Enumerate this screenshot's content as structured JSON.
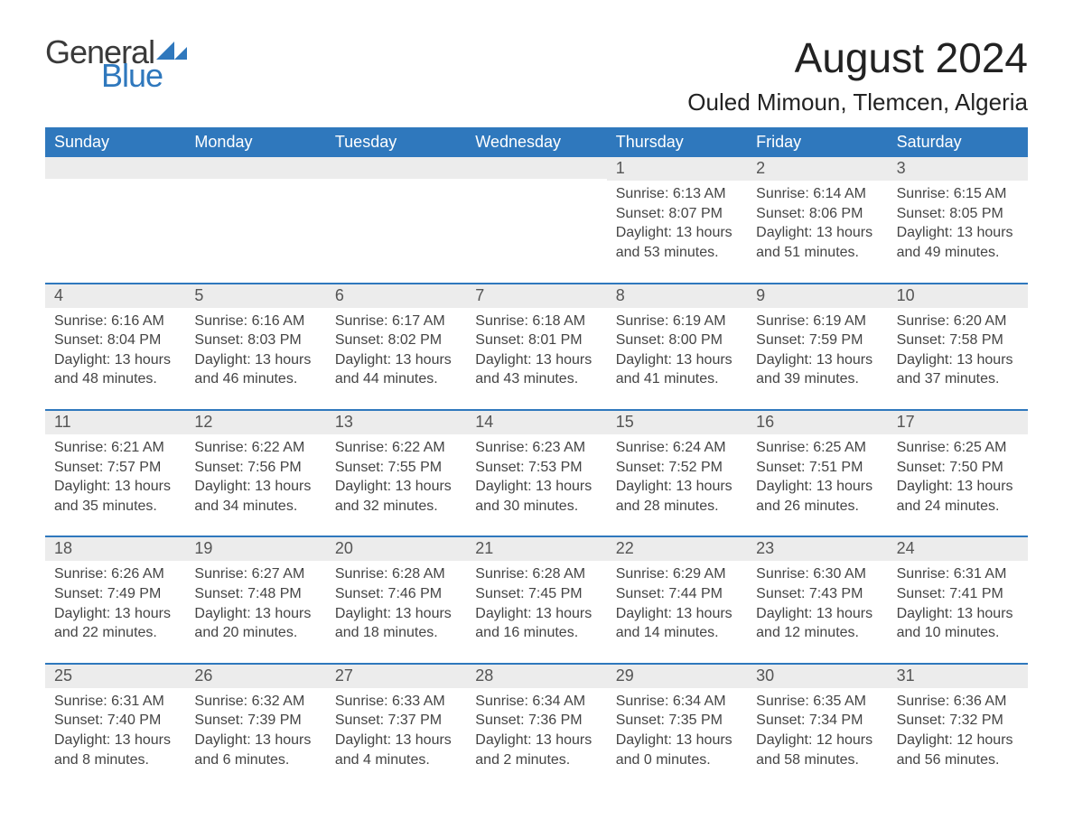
{
  "brand": {
    "word1": "General",
    "word2": "Blue",
    "tri_color": "#2f78bd"
  },
  "header": {
    "month_title": "August 2024",
    "location": "Ouled Mimoun, Tlemcen, Algeria"
  },
  "colors": {
    "header_bg": "#2f78bd",
    "header_text": "#ffffff",
    "daynum_bg": "#ececec",
    "body_text": "#444444",
    "rule": "#2f78bd"
  },
  "weekdays": [
    "Sunday",
    "Monday",
    "Tuesday",
    "Wednesday",
    "Thursday",
    "Friday",
    "Saturday"
  ],
  "weeks": [
    [
      {
        "day": "",
        "sunrise": "",
        "sunset": "",
        "daylight": ""
      },
      {
        "day": "",
        "sunrise": "",
        "sunset": "",
        "daylight": ""
      },
      {
        "day": "",
        "sunrise": "",
        "sunset": "",
        "daylight": ""
      },
      {
        "day": "",
        "sunrise": "",
        "sunset": "",
        "daylight": ""
      },
      {
        "day": "1",
        "sunrise": "Sunrise: 6:13 AM",
        "sunset": "Sunset: 8:07 PM",
        "daylight": "Daylight: 13 hours and 53 minutes."
      },
      {
        "day": "2",
        "sunrise": "Sunrise: 6:14 AM",
        "sunset": "Sunset: 8:06 PM",
        "daylight": "Daylight: 13 hours and 51 minutes."
      },
      {
        "day": "3",
        "sunrise": "Sunrise: 6:15 AM",
        "sunset": "Sunset: 8:05 PM",
        "daylight": "Daylight: 13 hours and 49 minutes."
      }
    ],
    [
      {
        "day": "4",
        "sunrise": "Sunrise: 6:16 AM",
        "sunset": "Sunset: 8:04 PM",
        "daylight": "Daylight: 13 hours and 48 minutes."
      },
      {
        "day": "5",
        "sunrise": "Sunrise: 6:16 AM",
        "sunset": "Sunset: 8:03 PM",
        "daylight": "Daylight: 13 hours and 46 minutes."
      },
      {
        "day": "6",
        "sunrise": "Sunrise: 6:17 AM",
        "sunset": "Sunset: 8:02 PM",
        "daylight": "Daylight: 13 hours and 44 minutes."
      },
      {
        "day": "7",
        "sunrise": "Sunrise: 6:18 AM",
        "sunset": "Sunset: 8:01 PM",
        "daylight": "Daylight: 13 hours and 43 minutes."
      },
      {
        "day": "8",
        "sunrise": "Sunrise: 6:19 AM",
        "sunset": "Sunset: 8:00 PM",
        "daylight": "Daylight: 13 hours and 41 minutes."
      },
      {
        "day": "9",
        "sunrise": "Sunrise: 6:19 AM",
        "sunset": "Sunset: 7:59 PM",
        "daylight": "Daylight: 13 hours and 39 minutes."
      },
      {
        "day": "10",
        "sunrise": "Sunrise: 6:20 AM",
        "sunset": "Sunset: 7:58 PM",
        "daylight": "Daylight: 13 hours and 37 minutes."
      }
    ],
    [
      {
        "day": "11",
        "sunrise": "Sunrise: 6:21 AM",
        "sunset": "Sunset: 7:57 PM",
        "daylight": "Daylight: 13 hours and 35 minutes."
      },
      {
        "day": "12",
        "sunrise": "Sunrise: 6:22 AM",
        "sunset": "Sunset: 7:56 PM",
        "daylight": "Daylight: 13 hours and 34 minutes."
      },
      {
        "day": "13",
        "sunrise": "Sunrise: 6:22 AM",
        "sunset": "Sunset: 7:55 PM",
        "daylight": "Daylight: 13 hours and 32 minutes."
      },
      {
        "day": "14",
        "sunrise": "Sunrise: 6:23 AM",
        "sunset": "Sunset: 7:53 PM",
        "daylight": "Daylight: 13 hours and 30 minutes."
      },
      {
        "day": "15",
        "sunrise": "Sunrise: 6:24 AM",
        "sunset": "Sunset: 7:52 PM",
        "daylight": "Daylight: 13 hours and 28 minutes."
      },
      {
        "day": "16",
        "sunrise": "Sunrise: 6:25 AM",
        "sunset": "Sunset: 7:51 PM",
        "daylight": "Daylight: 13 hours and 26 minutes."
      },
      {
        "day": "17",
        "sunrise": "Sunrise: 6:25 AM",
        "sunset": "Sunset: 7:50 PM",
        "daylight": "Daylight: 13 hours and 24 minutes."
      }
    ],
    [
      {
        "day": "18",
        "sunrise": "Sunrise: 6:26 AM",
        "sunset": "Sunset: 7:49 PM",
        "daylight": "Daylight: 13 hours and 22 minutes."
      },
      {
        "day": "19",
        "sunrise": "Sunrise: 6:27 AM",
        "sunset": "Sunset: 7:48 PM",
        "daylight": "Daylight: 13 hours and 20 minutes."
      },
      {
        "day": "20",
        "sunrise": "Sunrise: 6:28 AM",
        "sunset": "Sunset: 7:46 PM",
        "daylight": "Daylight: 13 hours and 18 minutes."
      },
      {
        "day": "21",
        "sunrise": "Sunrise: 6:28 AM",
        "sunset": "Sunset: 7:45 PM",
        "daylight": "Daylight: 13 hours and 16 minutes."
      },
      {
        "day": "22",
        "sunrise": "Sunrise: 6:29 AM",
        "sunset": "Sunset: 7:44 PM",
        "daylight": "Daylight: 13 hours and 14 minutes."
      },
      {
        "day": "23",
        "sunrise": "Sunrise: 6:30 AM",
        "sunset": "Sunset: 7:43 PM",
        "daylight": "Daylight: 13 hours and 12 minutes."
      },
      {
        "day": "24",
        "sunrise": "Sunrise: 6:31 AM",
        "sunset": "Sunset: 7:41 PM",
        "daylight": "Daylight: 13 hours and 10 minutes."
      }
    ],
    [
      {
        "day": "25",
        "sunrise": "Sunrise: 6:31 AM",
        "sunset": "Sunset: 7:40 PM",
        "daylight": "Daylight: 13 hours and 8 minutes."
      },
      {
        "day": "26",
        "sunrise": "Sunrise: 6:32 AM",
        "sunset": "Sunset: 7:39 PM",
        "daylight": "Daylight: 13 hours and 6 minutes."
      },
      {
        "day": "27",
        "sunrise": "Sunrise: 6:33 AM",
        "sunset": "Sunset: 7:37 PM",
        "daylight": "Daylight: 13 hours and 4 minutes."
      },
      {
        "day": "28",
        "sunrise": "Sunrise: 6:34 AM",
        "sunset": "Sunset: 7:36 PM",
        "daylight": "Daylight: 13 hours and 2 minutes."
      },
      {
        "day": "29",
        "sunrise": "Sunrise: 6:34 AM",
        "sunset": "Sunset: 7:35 PM",
        "daylight": "Daylight: 13 hours and 0 minutes."
      },
      {
        "day": "30",
        "sunrise": "Sunrise: 6:35 AM",
        "sunset": "Sunset: 7:34 PM",
        "daylight": "Daylight: 12 hours and 58 minutes."
      },
      {
        "day": "31",
        "sunrise": "Sunrise: 6:36 AM",
        "sunset": "Sunset: 7:32 PM",
        "daylight": "Daylight: 12 hours and 56 minutes."
      }
    ]
  ]
}
